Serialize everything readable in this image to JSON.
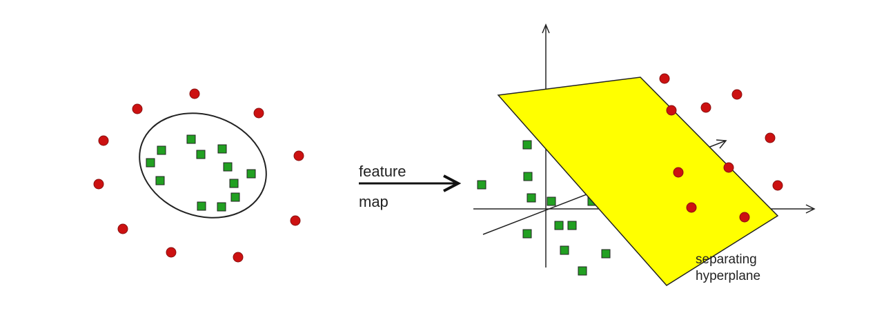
{
  "labels": {
    "arrow_line1": "feature",
    "arrow_line2": "map",
    "plane_line1": "separating",
    "plane_line2": "hyperplane"
  },
  "colors": {
    "circle_class": "#cc1111",
    "square_class": "#22a022",
    "hyperplane": "#ffff00",
    "stroke": "#222222"
  },
  "icons": {
    "circle_class": "red-circle-icon",
    "square_class": "green-square-icon"
  }
}
